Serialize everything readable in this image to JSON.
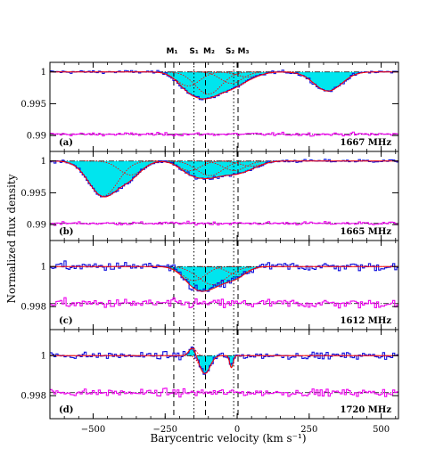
{
  "chart_data": {
    "type": "line",
    "xlabel": "Barycentric velocity (km s⁻¹)",
    "ylabel": "Normalized flux density",
    "xlim": [
      -650,
      560
    ],
    "xticks": [
      -500,
      -250,
      0,
      250,
      500
    ],
    "xtick_labels": [
      "−500",
      "−250",
      "0",
      "250",
      "500"
    ],
    "components": [
      {
        "name": "M₁",
        "velocity": -220,
        "style": "dashed"
      },
      {
        "name": "S₁",
        "velocity": -150,
        "style": "dotted"
      },
      {
        "name": "M₂",
        "velocity": -110,
        "style": "dashed"
      },
      {
        "name": "S₂",
        "velocity": -12,
        "style": "dotted"
      },
      {
        "name": "M₃",
        "velocity": 3,
        "style": "dashed"
      }
    ],
    "colors": {
      "spectrum": "#1010dd",
      "residual": "#ee00ee",
      "fit": "#ff0000",
      "fill": "#00e5ee",
      "component_fit": "#ff0000"
    },
    "panels": [
      {
        "label": "(a)",
        "line": "1667 MHz",
        "ylim": [
          0.9875,
          1.0015
        ],
        "yticks": [
          1,
          0.995,
          0.99
        ],
        "ytick_labels": [
          "1",
          "0.995",
          "0.99"
        ],
        "continuum": 1.0,
        "residual_offset": 0.9902,
        "noise": 0.00022,
        "gaussians": [
          {
            "center": -170,
            "depth": 0.0022,
            "sigma": 40
          },
          {
            "center": -100,
            "depth": 0.0035,
            "sigma": 45
          },
          {
            "center": -20,
            "depth": 0.0018,
            "sigma": 38
          },
          {
            "center": 40,
            "depth": 0.0008,
            "sigma": 40
          },
          {
            "center": 315,
            "depth": 0.003,
            "sigma": 48
          }
        ]
      },
      {
        "label": "(b)",
        "line": "1665 MHz",
        "ylim": [
          0.9875,
          1.0015
        ],
        "yticks": [
          1,
          0.995,
          0.99
        ],
        "ytick_labels": [
          "1",
          "0.995",
          "0.99"
        ],
        "continuum": 1.0,
        "residual_offset": 0.9902,
        "noise": 0.00022,
        "gaussians": [
          {
            "center": -465,
            "depth": 0.0055,
            "sigma": 50
          },
          {
            "center": -370,
            "depth": 0.0022,
            "sigma": 40
          },
          {
            "center": -165,
            "depth": 0.0015,
            "sigma": 38
          },
          {
            "center": -95,
            "depth": 0.0023,
            "sigma": 45
          },
          {
            "center": -10,
            "depth": 0.0015,
            "sigma": 40
          },
          {
            "center": 50,
            "depth": 0.0008,
            "sigma": 40
          }
        ]
      },
      {
        "label": "(c)",
        "line": "1612 MHz",
        "ylim": [
          0.99685,
          1.0013
        ],
        "yticks": [
          1,
          0.998
        ],
        "ytick_labels": [
          "1",
          "0.998"
        ],
        "continuum": 1.0,
        "residual_offset": 0.99815,
        "noise": 0.0002,
        "gaussians": [
          {
            "center": -150,
            "depth": 0.0007,
            "sigma": 40
          },
          {
            "center": -85,
            "depth": 0.0009,
            "sigma": 50
          },
          {
            "center": 0,
            "depth": 0.0004,
            "sigma": 35
          }
        ]
      },
      {
        "label": "(d)",
        "line": "1720 MHz",
        "ylim": [
          0.99685,
          1.0013
        ],
        "yticks": [
          1,
          0.998
        ],
        "ytick_labels": [
          "1",
          "0.998"
        ],
        "continuum": 1.0,
        "residual_offset": 0.99815,
        "noise": 0.00015,
        "gaussians": [
          {
            "center": -155,
            "depth": -0.0004,
            "sigma": 12
          },
          {
            "center": -112,
            "depth": 0.0009,
            "sigma": 18
          },
          {
            "center": -20,
            "depth": 0.0006,
            "sigma": 6
          }
        ]
      }
    ]
  }
}
